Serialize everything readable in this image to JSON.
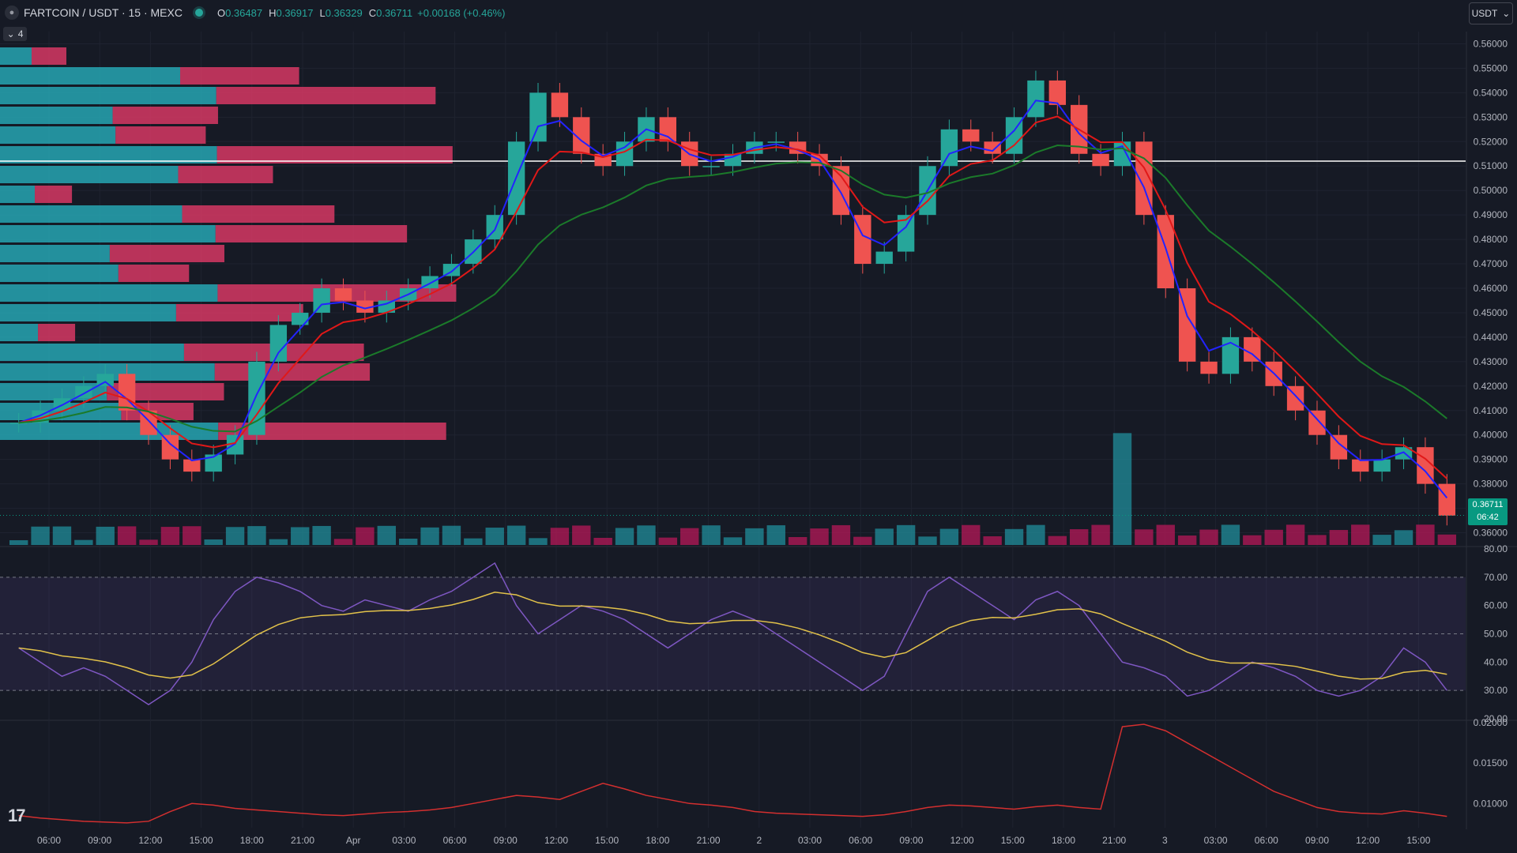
{
  "header": {
    "symbol": "FARTCOIN / USDT · 15 · MEXC",
    "ohlc": [
      {
        "k": "O",
        "v": "0.36487"
      },
      {
        "k": "H",
        "v": "0.36917"
      },
      {
        "k": "L",
        "v": "0.36329"
      },
      {
        "k": "C",
        "v": "0.36711"
      }
    ],
    "change": "+0.00168 (+0.46%)",
    "currency": "USDT",
    "indicator_count": "4"
  },
  "colors": {
    "background": "#161a25",
    "up": "#26a69a",
    "down": "#ef5350",
    "ema_fast": "#2323ff",
    "ema_mid": "#e01818",
    "ema_slow": "#1b7a2a",
    "rsi": "#7e57c2",
    "rsi_ma": "#e2c24a",
    "vol_up": "#2196a3",
    "vol_down": "#c2185b"
  },
  "price_axis": [
    "0.56000",
    "0.55000",
    "0.54000",
    "0.53000",
    "0.52000",
    "0.51000",
    "0.50000",
    "0.49000",
    "0.48000",
    "0.47000",
    "0.46000",
    "0.45000",
    "0.44000",
    "0.43000",
    "0.42000",
    "0.41000",
    "0.40000",
    "0.39000",
    "0.38000",
    "0.37000",
    "0.36000"
  ],
  "last_price": {
    "price": "0.36711",
    "countdown": "06:42"
  },
  "rsi_axis": [
    "80.00",
    "70.00",
    "60.00",
    "50.00",
    "40.00",
    "30.00",
    "20.00"
  ],
  "atr_axis": [
    "0.02000",
    "0.01500",
    "0.01000"
  ],
  "time_axis": [
    "06:00",
    "09:00",
    "12:00",
    "15:00",
    "18:00",
    "21:00",
    "Apr",
    "03:00",
    "06:00",
    "09:00",
    "12:00",
    "15:00",
    "18:00",
    "21:00",
    "2",
    "03:00",
    "06:00",
    "09:00",
    "12:00",
    "15:00",
    "18:00",
    "21:00",
    "3",
    "03:00",
    "06:00",
    "09:00",
    "12:00",
    "15:00"
  ],
  "chart_data": [
    {
      "type": "line",
      "title": "",
      "series": [
        {
          "values": [
            0.405,
            0.41,
            0.415,
            0.42,
            0.425,
            0.41,
            0.4,
            0.39,
            0.385,
            0.392,
            0.4,
            0.43,
            0.445,
            0.45,
            0.46,
            0.455,
            0.45,
            0.455,
            0.46,
            0.465,
            0.47,
            0.48,
            0.49,
            0.52,
            0.54,
            0.53,
            0.515,
            0.51,
            0.52,
            0.53,
            0.52,
            0.51,
            0.51,
            0.515,
            0.52,
            0.52,
            0.515,
            0.51,
            0.49,
            0.47,
            0.475,
            0.49,
            0.51,
            0.525,
            0.52,
            0.515,
            0.53,
            0.545,
            0.535,
            0.515,
            0.51,
            0.52,
            0.49,
            0.46,
            0.43,
            0.425,
            0.44,
            0.43,
            0.42,
            0.41,
            0.4,
            0.39,
            0.385,
            0.39,
            0.395,
            0.38,
            0.367
          ]
        }
      ],
      "ylim": [
        0.355,
        0.565
      ]
    },
    {
      "type": "line",
      "title": "",
      "series": [
        {
          "values": [
            45,
            40,
            35,
            38,
            35,
            30,
            25,
            30,
            40,
            55,
            65,
            70,
            68,
            65,
            60,
            58,
            62,
            60,
            58,
            62,
            65,
            70,
            75,
            60,
            50,
            55,
            60,
            58,
            55,
            50,
            45,
            50,
            55,
            58,
            55,
            50,
            45,
            40,
            35,
            30,
            35,
            50,
            65,
            70,
            65,
            60,
            55,
            62,
            65,
            60,
            50,
            40,
            38,
            35,
            28,
            30,
            35,
            40,
            38,
            35,
            30,
            28,
            30,
            35,
            45,
            40,
            30
          ]
        }
      ],
      "ylim": [
        20,
        80
      ]
    },
    {
      "type": "line",
      "title": "",
      "series": [
        {
          "values": [
            0.0085,
            0.0082,
            0.008,
            0.0078,
            0.0077,
            0.0076,
            0.0078,
            0.009,
            0.01,
            0.0098,
            0.0094,
            0.0092,
            0.009,
            0.0088,
            0.0086,
            0.0085,
            0.0087,
            0.0089,
            0.009,
            0.0092,
            0.0095,
            0.01,
            0.0105,
            0.011,
            0.0108,
            0.0105,
            0.0115,
            0.0125,
            0.0118,
            0.011,
            0.0105,
            0.01,
            0.0098,
            0.0095,
            0.009,
            0.0088,
            0.0087,
            0.0086,
            0.0085,
            0.0084,
            0.0086,
            0.009,
            0.0095,
            0.0098,
            0.0097,
            0.0095,
            0.0093,
            0.0096,
            0.0098,
            0.0095,
            0.0093,
            0.0195,
            0.0198,
            0.019,
            0.0175,
            0.016,
            0.0145,
            0.013,
            0.0115,
            0.0105,
            0.0095,
            0.009,
            0.0088,
            0.0087,
            0.0091,
            0.0088,
            0.0084
          ]
        }
      ],
      "ylim": [
        0.007,
        0.02
      ]
    }
  ]
}
